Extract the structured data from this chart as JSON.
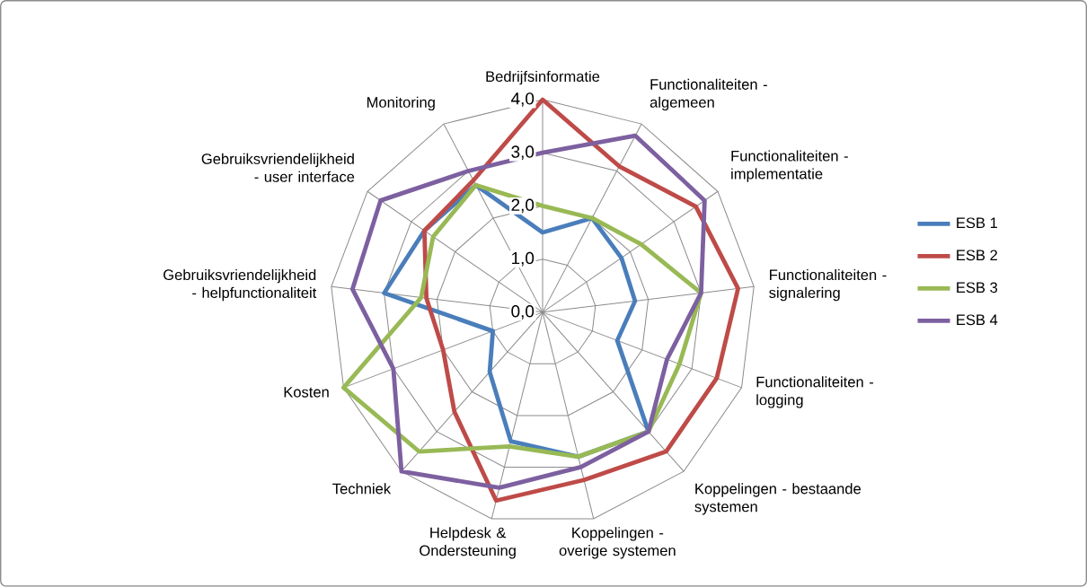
{
  "chart_data": {
    "type": "radar",
    "categories": [
      "Bedrijfsinformatie",
      "Functionaliteiten - algemeen",
      "Functionaliteiten - implementatie",
      "Functionaliteiten - signalering",
      "Functionaliteiten - logging",
      "Koppelingen - bestaande systemen",
      "Koppelingen - overige systemen",
      "Helpdesk & Ondersteuning",
      "Techniek",
      "Kosten",
      "Gebruiksvriendelijkheid - helpfunctionaliteit",
      "Gebruiksvriendelijkheid - user interface",
      "Monitoring"
    ],
    "series": [
      {
        "name": "ESB 1",
        "color": "#4a7ebb",
        "values": [
          1.5,
          2.0,
          1.8,
          1.75,
          1.5,
          3.0,
          2.8,
          2.5,
          1.5,
          1.0,
          3.0,
          2.7,
          2.7
        ]
      },
      {
        "name": "ESB 2",
        "color": "#be4b48",
        "values": [
          4.0,
          3.1,
          3.5,
          3.7,
          3.5,
          3.5,
          3.25,
          3.65,
          2.5,
          2.0,
          2.2,
          2.7,
          2.8
        ]
      },
      {
        "name": "ESB 3",
        "color": "#98b954",
        "values": [
          2.0,
          2.0,
          2.25,
          3.0,
          2.75,
          3.0,
          2.8,
          2.6,
          3.5,
          4.0,
          2.3,
          2.5,
          2.7
        ]
      },
      {
        "name": "ESB 4",
        "color": "#7d60a0",
        "values": [
          3.0,
          3.75,
          3.7,
          3.0,
          2.5,
          3.0,
          3.0,
          3.4,
          4.0,
          3.0,
          3.6,
          3.7,
          3.0
        ]
      }
    ],
    "ylim": [
      0,
      4
    ],
    "yticks": [
      {
        "value": 0,
        "label": "0,0"
      },
      {
        "value": 1,
        "label": "1,0"
      },
      {
        "value": 2,
        "label": "2,0"
      },
      {
        "value": 3,
        "label": "3,0"
      },
      {
        "value": 4,
        "label": "4,0"
      }
    ],
    "grid": true,
    "legend": "right"
  }
}
